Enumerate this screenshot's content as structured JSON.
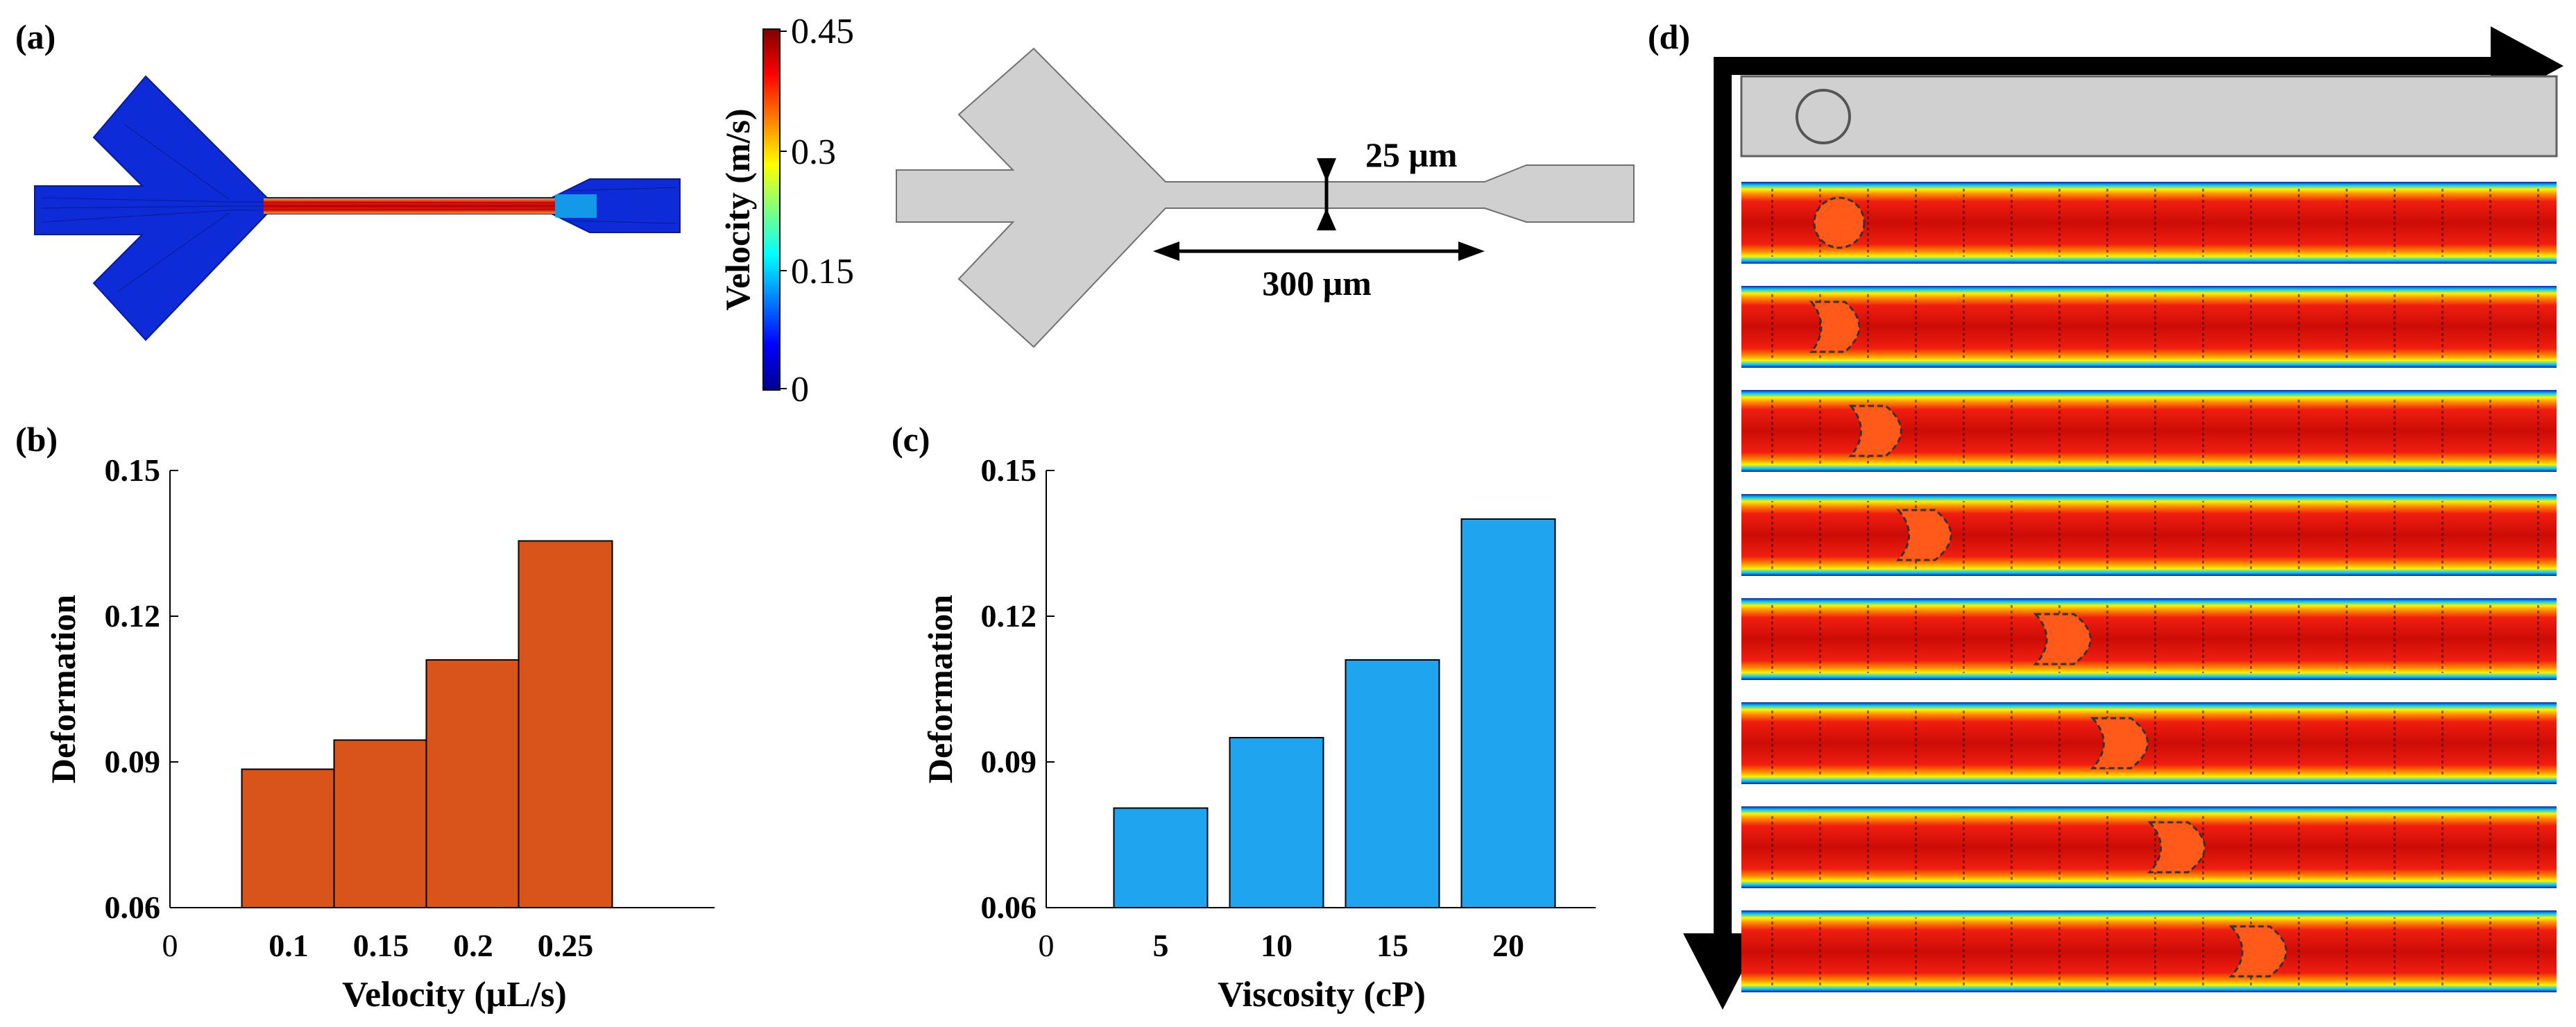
{
  "panels": {
    "a": {
      "label": "(a)",
      "colorbar": {
        "title": "Velocity (m/s)",
        "ticks": [
          "0.45",
          "0.3",
          "0.15",
          "0"
        ],
        "tick_values": [
          0.45,
          0.3,
          0.15,
          0
        ],
        "range": [
          0,
          0.45
        ]
      },
      "geometry": {
        "width_label": "25 μm",
        "length_label": "300 μm"
      }
    },
    "d": {
      "label": "(d)",
      "cell_positions": [
        0.12,
        0.12,
        0.17,
        0.23,
        0.4,
        0.47,
        0.54,
        0.64
      ]
    }
  },
  "colors": {
    "orange_bar": "#d9541a",
    "blue_bar": "#1fa5f0",
    "geometry_gray": "#d0d0d0",
    "channel_blue": "#0d2bd6"
  },
  "chart_data": [
    {
      "panel_label": "(b)",
      "type": "bar",
      "categories": [
        "0.1",
        "0.15",
        "0.2",
        "0.25"
      ],
      "values": [
        0.0885,
        0.0945,
        0.111,
        0.1355
      ],
      "xlabel": "Velocity (μL/s)",
      "ylabel": "Deformation",
      "ylim": [
        0.06,
        0.15
      ],
      "yticks": [
        "0.06",
        "0.09",
        "0.12",
        "0.15"
      ],
      "x_origin_label": "0",
      "color": "#d9541a"
    },
    {
      "panel_label": "(c)",
      "type": "bar",
      "categories": [
        "5",
        "10",
        "15",
        "20"
      ],
      "values": [
        0.0805,
        0.095,
        0.111,
        0.14
      ],
      "xlabel": "Viscosity (cP)",
      "ylabel": "Deformation",
      "ylim": [
        0.06,
        0.15
      ],
      "yticks": [
        "0.06",
        "0.09",
        "0.12",
        "0.15"
      ],
      "x_origin_label": "0",
      "color": "#1fa5f0"
    }
  ]
}
